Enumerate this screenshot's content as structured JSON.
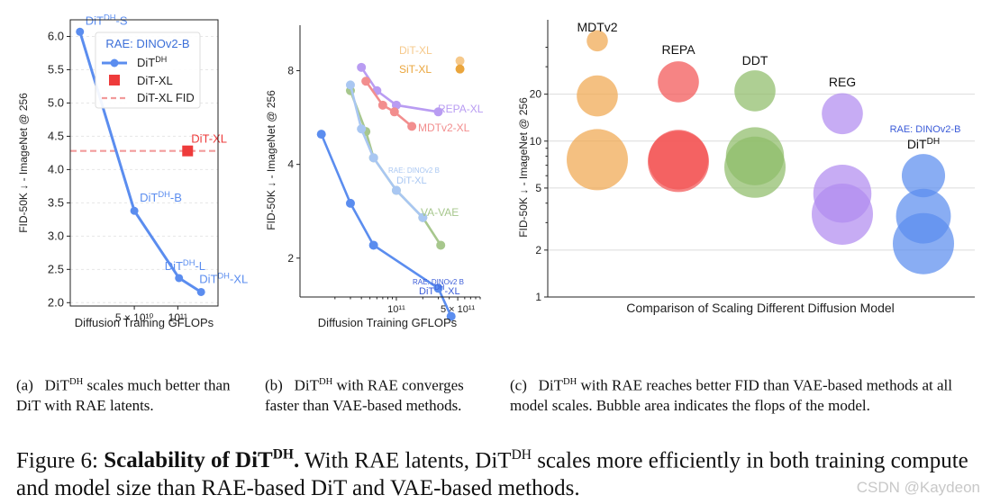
{
  "colors": {
    "dit_dh": "#5b8def",
    "dit_xl_marker": "#ee3b3b",
    "fid_line": "#f29b9b",
    "axis": "#222222"
  },
  "chart_data": [
    {
      "type": "line",
      "panel": "a",
      "xlabel": "Diffusion Training GFLOPs",
      "ylabel": "FID-50K ↓ - ImageNet @ 256",
      "x_scale": "log",
      "xlim": [
        18000000000,
        190000000000
      ],
      "ylim": [
        1.95,
        6.25
      ],
      "yticks": [
        2.0,
        2.5,
        3.0,
        3.5,
        4.0,
        4.5,
        5.0,
        5.5,
        6.0
      ],
      "ytick_labels": [
        "2.0",
        "2.5",
        "3.0",
        "3.5",
        "4.0",
        "4.5",
        "5.0",
        "5.5",
        "6.0"
      ],
      "xticks": [
        50000000000,
        100000000000
      ],
      "xtick_labels": [
        "5 × 10¹⁰",
        "10¹¹"
      ],
      "legend": {
        "title": "RAE: DINOv2-B",
        "entries": [
          "DiT^DH",
          "DiT-XL",
          "DiT-XL FID"
        ],
        "position": "upper-right"
      },
      "series": [
        {
          "name": "DiT^DH",
          "x": [
            21000000000,
            50000000000,
            102000000000,
            145000000000
          ],
          "y": [
            6.07,
            3.38,
            2.37,
            2.16
          ],
          "point_labels": [
            "DiT^DH-S",
            "DiT^DH-B",
            "DiT^DH-L",
            "DiT^DH-XL"
          ]
        }
      ],
      "points": [
        {
          "name": "DiT-XL",
          "x": 117000000000,
          "y": 4.28,
          "label": "DiT-XL"
        }
      ],
      "hlines": [
        {
          "name": "DiT-XL FID",
          "y": 4.28
        }
      ]
    },
    {
      "type": "line",
      "panel": "b",
      "xlabel": "Diffusion Training GFLOPs",
      "ylabel": "FID-50K ↓ - ImageNet @ 256",
      "x_scale": "log",
      "y_scale": "log",
      "xlim": [
        8000000000,
        900000000000
      ],
      "ylim": [
        1.5,
        11.2
      ],
      "yticks": [
        2,
        4,
        8
      ],
      "ytick_labels": [
        "2",
        "4",
        "8"
      ],
      "xticks": [
        100000000000,
        500000000000
      ],
      "xtick_labels": [
        "10¹¹",
        "5 × 10¹¹"
      ],
      "series": [
        {
          "name": "DiT-XL",
          "x": [
            530000000000
          ],
          "y": [
            8.6
          ],
          "color": "#f6c98b",
          "label": "DiT-XL"
        },
        {
          "name": "SiT-XL",
          "x": [
            530000000000
          ],
          "y": [
            8.1
          ],
          "color": "#eaa53c",
          "label": "SiT-XL"
        },
        {
          "name": "REPA-XL",
          "x": [
            40000000000,
            60000000000,
            100000000000,
            300000000000
          ],
          "y": [
            8.2,
            6.9,
            6.2,
            5.9
          ],
          "color": "#b99cf2",
          "label": "REPA-XL"
        },
        {
          "name": "MDTv2-XL",
          "x": [
            45000000000,
            70000000000,
            95000000000,
            150000000000
          ],
          "y": [
            7.4,
            6.2,
            5.9,
            5.3
          ],
          "color": "#f28e8e",
          "label": "MDTv2-XL"
        },
        {
          "name": "VA-VAE",
          "x": [
            30000000000,
            45000000000,
            55000000000,
            100000000000,
            200000000000,
            320000000000
          ],
          "y": [
            6.9,
            5.1,
            4.2,
            3.3,
            2.7,
            2.2
          ],
          "color": "#a7c78d",
          "label": "VA-VAE"
        },
        {
          "name": "RAE: DINOv2 B DiT-XL",
          "x": [
            30000000000,
            40000000000,
            55000000000,
            100000000000,
            200000000000
          ],
          "y": [
            7.2,
            5.2,
            4.2,
            3.3,
            2.7
          ],
          "color": "#a9c7f2",
          "label": "RAE: DINOv2 B DiT-XL"
        },
        {
          "name": "RAE: DINOv2 B DiT^DH-XL",
          "x": [
            14000000000,
            30000000000,
            55000000000,
            300000000000,
            420000000000
          ],
          "y": [
            5.0,
            3.0,
            2.2,
            1.6,
            1.3
          ],
          "color": "#5b8def",
          "label": "RAE: DINOv2 B DiT^DH-XL"
        }
      ]
    },
    {
      "type": "scatter",
      "panel": "c",
      "xlabel": "Comparison of Scaling Different Diffusion Model",
      "ylabel": "FID-50K ↓ - ImageNet @ 256",
      "y_scale": "log",
      "ylim": [
        1,
        60
      ],
      "yticks": [
        1,
        2,
        5,
        10,
        20
      ],
      "ytick_labels": [
        "1",
        "2",
        "5",
        "10",
        "20"
      ],
      "grid": true,
      "note": "Bubble area indicates the flops of the model.",
      "groups": [
        {
          "name": "MDTv2",
          "color": "#f0a850",
          "bubbles": [
            {
              "y": 44,
              "size": 0.12
            },
            {
              "y": 19.5,
              "size": 0.45
            },
            {
              "y": 7.6,
              "size": 1.0
            }
          ]
        },
        {
          "name": "REPA",
          "color": "#f25555",
          "bubbles": [
            {
              "y": 24,
              "size": 0.45
            },
            {
              "y": 7.6,
              "size": 0.95
            },
            {
              "y": 7.4,
              "size": 1.0
            }
          ]
        },
        {
          "name": "DDT",
          "color": "#8fbd6a",
          "bubbles": [
            {
              "y": 21,
              "size": 0.45
            },
            {
              "y": 8.0,
              "size": 0.9
            },
            {
              "y": 6.8,
              "size": 1.0
            }
          ]
        },
        {
          "name": "REG",
          "color": "#b18cf0",
          "bubbles": [
            {
              "y": 15,
              "size": 0.45
            },
            {
              "y": 4.6,
              "size": 0.9
            },
            {
              "y": 3.4,
              "size": 1.0
            }
          ]
        },
        {
          "name": "RAE: DINOv2-B DiT^DH",
          "color": "#5b8def",
          "bubbles": [
            {
              "y": 6.0,
              "size": 0.5
            },
            {
              "y": 3.3,
              "size": 0.8
            },
            {
              "y": 2.2,
              "size": 1.0
            }
          ]
        }
      ]
    }
  ],
  "captions": {
    "a": {
      "label": "(a)",
      "text_before": "DiT",
      "sup": "DH",
      "text_after": " scales much better than DiT with RAE latents."
    },
    "b": {
      "label": "(b)",
      "text_before": "DiT",
      "sup": "DH",
      "text_after": " with RAE converges faster than VAE-based methods."
    },
    "c": {
      "label": "(c)",
      "text_before": "DiT",
      "sup": "DH",
      "text_after": " with RAE reaches better FID than VAE-based methods at all model scales. Bubble area indicates the flops of the model."
    },
    "figure": {
      "prefix": "Figure 6: ",
      "bold": "Scalability of DiT",
      "bold_sup": "DH",
      "bold_end": ".",
      "text1": " With RAE latents, DiT",
      "sup2": "DH",
      "text2": " scales more efficiently in both training compute and model size than RAE-based DiT and VAE-based methods."
    }
  },
  "watermark": "CSDN @Kaydeon"
}
